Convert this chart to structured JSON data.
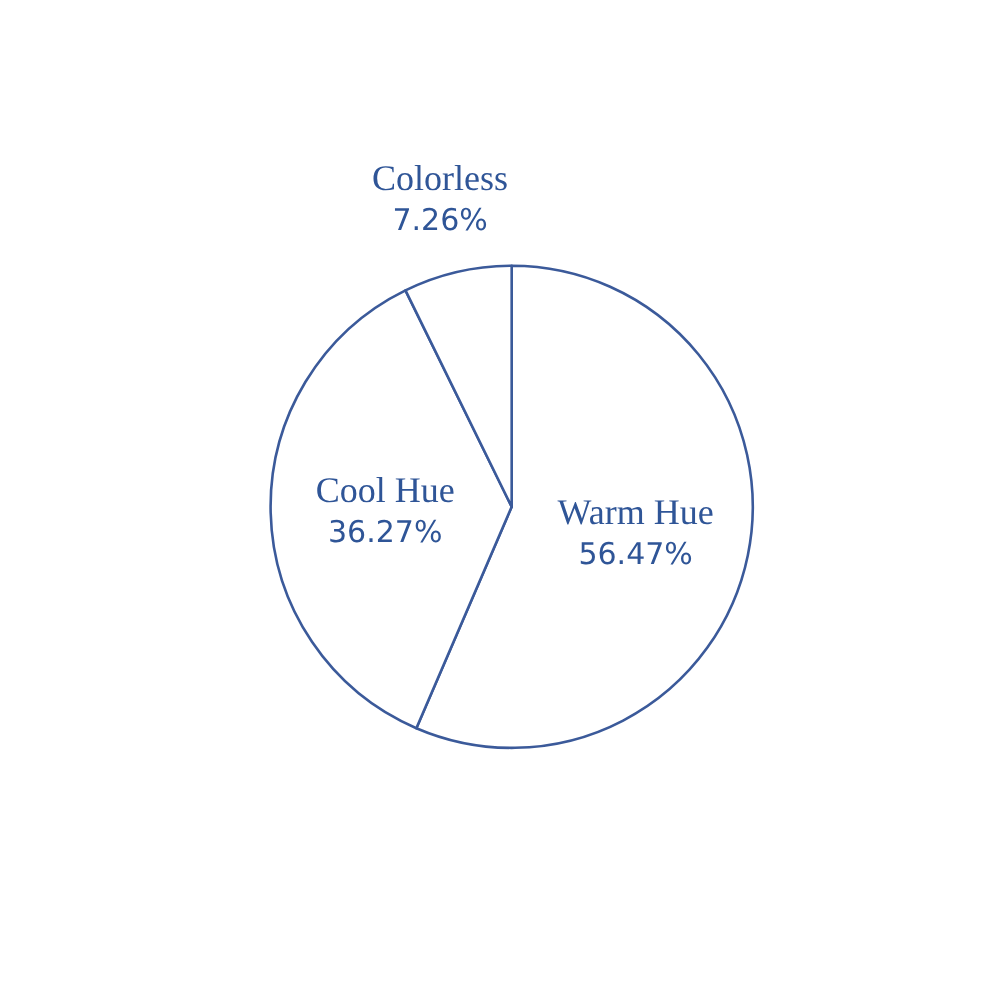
{
  "chart_data": {
    "type": "pie",
    "categories": [
      "Warm Hue",
      "Cool Hue",
      "Colorless"
    ],
    "values": [
      56.47,
      36.27,
      7.26
    ],
    "value_labels": [
      "56.47%",
      "36.27%",
      "7.26%"
    ],
    "colors": [
      "#ffffff",
      "#ffffff",
      "#ffffff"
    ],
    "legend": false
  }
}
